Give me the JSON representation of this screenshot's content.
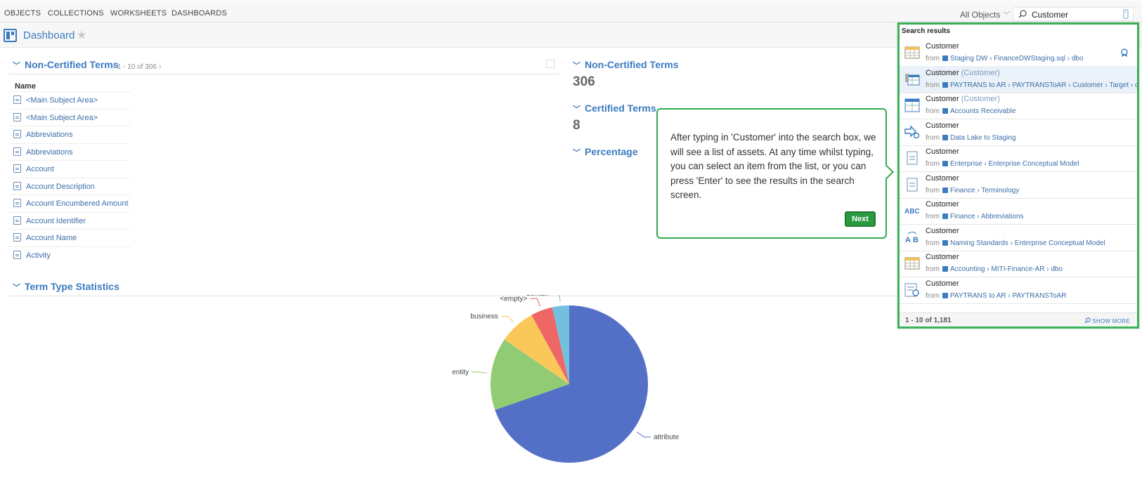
{
  "nav": {
    "items": [
      "OBJECTS",
      "COLLECTIONS",
      "WORKSHEETS",
      "DASHBOARDS"
    ],
    "scope": "All Objects",
    "search_value": "Customer"
  },
  "dashboard": {
    "title": "Dashboard"
  },
  "left_panel": {
    "title": "Non-Certified Terms",
    "pager": "1 - 10 of 306",
    "column": "Name",
    "rows": [
      "<Main Subject Area>",
      "<Main Subject Area>",
      "Abbreviations",
      "Abbreviations",
      "Account",
      "Account Description",
      "Account Encumbered Amount",
      "Account Identifier",
      "Account Name",
      "Activity"
    ]
  },
  "stats": {
    "noncert_title": "Non-Certified Terms",
    "noncert_value": "306",
    "cert_title": "Certified Terms",
    "cert_value": "8",
    "pct_title": "Percentage"
  },
  "term_type": {
    "title": "Term Type Statistics"
  },
  "tooltip": {
    "text": "After typing in 'Customer' into the search box, we will see a list of assets. At any time whilst typing, you can select an item from the list, or you can press 'Enter' to see the results in the search screen.",
    "next": "Next"
  },
  "results": {
    "heading": "Search results",
    "footer_count": "1 - 10 of 1,181",
    "footer_more": "SHOW MORE",
    "from": "from",
    "items": [
      {
        "name": "Customer",
        "alias": "",
        "path": "Staging DW › FinanceDWStaging.sql › dbo",
        "icon": "table-icon"
      },
      {
        "name": "Customer",
        "alias": "(Customer)",
        "path": "PAYTRANS to AR › PAYTRANSToAR › Customer › Target › db",
        "icon": "table-mapping-icon"
      },
      {
        "name": "Customer",
        "alias": "(Customer)",
        "path": "Accounts Receivable",
        "icon": "entity-icon"
      },
      {
        "name": "Customer",
        "alias": "",
        "path": "Data Lake to Staging",
        "icon": "flow-icon"
      },
      {
        "name": "Customer",
        "alias": "",
        "path": "Enterprise › Enterprise Conceptual Model",
        "icon": "term-icon"
      },
      {
        "name": "Customer",
        "alias": "",
        "path": "Finance › Terminology",
        "icon": "term-icon"
      },
      {
        "name": "Customer",
        "alias": "",
        "path": "Finance › Abbreviations",
        "icon": "abc-icon"
      },
      {
        "name": "Customer",
        "alias": "",
        "path": "Naming Standards › Enterprise Conceptual Model",
        "icon": "naming-icon"
      },
      {
        "name": "Customer",
        "alias": "",
        "path": "Accounting › MITI-Finance-AR › dbo",
        "icon": "table-icon"
      },
      {
        "name": "Customer",
        "alias": "",
        "path": "PAYTRANS to AR › PAYTRANSToAR",
        "icon": "mapping-icon"
      }
    ]
  },
  "chart_data": {
    "type": "pie",
    "title": "",
    "slices": [
      {
        "label": "attribute",
        "value": 70,
        "color": "#5470c6"
      },
      {
        "label": "entity",
        "value": 15,
        "color": "#91cc75"
      },
      {
        "label": "business",
        "value": 7.5,
        "color": "#fac858"
      },
      {
        "label": "<empty>",
        "value": 4.5,
        "color": "#ee6666"
      },
      {
        "label": "domain",
        "value": 3.5,
        "color": "#73c0de"
      }
    ]
  }
}
